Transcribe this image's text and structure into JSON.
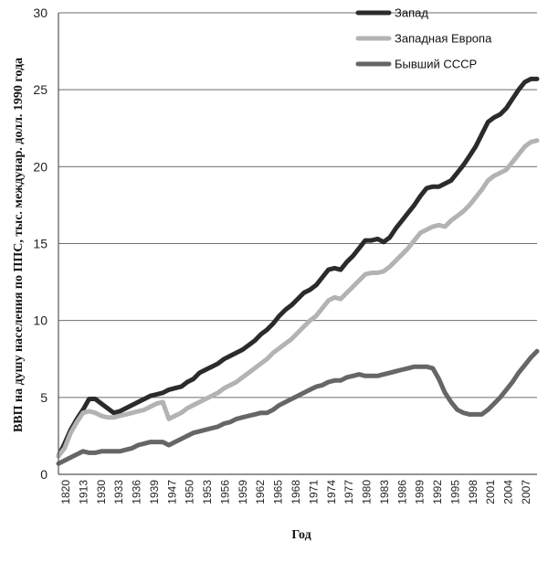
{
  "chart_data": {
    "type": "line",
    "title": "",
    "xlabel": "Год",
    "ylabel": "ВВП на душу населения по ППС, тыс. междунар. долл. 1990 года",
    "ylim": [
      0,
      30
    ],
    "yticks": [
      "0",
      "5",
      "10",
      "15",
      "20",
      "25",
      "30"
    ],
    "grid": "horizontal",
    "legend": "top-right",
    "x_tick_labels": [
      "1820",
      "1913",
      "1930",
      "1933",
      "1936",
      "1939",
      "1947",
      "1950",
      "1953",
      "1956",
      "1959",
      "1962",
      "1965",
      "1968",
      "1971",
      "1974",
      "1977",
      "1980",
      "1983",
      "1986",
      "1989",
      "1992",
      "1995",
      "1998",
      "2001",
      "2004",
      "2007"
    ],
    "series": [
      {
        "name": "Запад",
        "color": "#2b2b2b",
        "points": [
          [
            0,
            1.2
          ],
          [
            1,
            2.0
          ],
          [
            2,
            2.9
          ],
          [
            3,
            3.6
          ],
          [
            4,
            4.2
          ],
          [
            5,
            4.9
          ],
          [
            6,
            4.9
          ],
          [
            7,
            4.6
          ],
          [
            8,
            4.3
          ],
          [
            9,
            4.0
          ],
          [
            10,
            4.1
          ],
          [
            11,
            4.3
          ],
          [
            12,
            4.5
          ],
          [
            13,
            4.7
          ],
          [
            14,
            4.9
          ],
          [
            15,
            5.1
          ],
          [
            16,
            5.2
          ],
          [
            17,
            5.3
          ],
          [
            18,
            5.5
          ],
          [
            19,
            5.6
          ],
          [
            20,
            5.7
          ],
          [
            21,
            6.0
          ],
          [
            22,
            6.2
          ],
          [
            23,
            6.6
          ],
          [
            24,
            6.8
          ],
          [
            25,
            7.0
          ],
          [
            26,
            7.2
          ],
          [
            27,
            7.5
          ],
          [
            28,
            7.7
          ],
          [
            29,
            7.9
          ],
          [
            30,
            8.1
          ],
          [
            31,
            8.4
          ],
          [
            32,
            8.7
          ],
          [
            33,
            9.1
          ],
          [
            34,
            9.4
          ],
          [
            35,
            9.8
          ],
          [
            36,
            10.3
          ],
          [
            37,
            10.7
          ],
          [
            38,
            11.0
          ],
          [
            39,
            11.4
          ],
          [
            40,
            11.8
          ],
          [
            41,
            12.0
          ],
          [
            42,
            12.3
          ],
          [
            43,
            12.8
          ],
          [
            44,
            13.3
          ],
          [
            45,
            13.4
          ],
          [
            46,
            13.3
          ],
          [
            47,
            13.8
          ],
          [
            48,
            14.2
          ],
          [
            49,
            14.7
          ],
          [
            50,
            15.2
          ],
          [
            51,
            15.2
          ],
          [
            52,
            15.3
          ],
          [
            53,
            15.1
          ],
          [
            54,
            15.4
          ],
          [
            55,
            16.0
          ],
          [
            56,
            16.5
          ],
          [
            57,
            17.0
          ],
          [
            58,
            17.5
          ],
          [
            59,
            18.1
          ],
          [
            60,
            18.6
          ],
          [
            61,
            18.7
          ],
          [
            62,
            18.7
          ],
          [
            63,
            18.9
          ],
          [
            64,
            19.1
          ],
          [
            65,
            19.6
          ],
          [
            66,
            20.1
          ],
          [
            67,
            20.7
          ],
          [
            68,
            21.3
          ],
          [
            69,
            22.1
          ],
          [
            70,
            22.9
          ],
          [
            71,
            23.2
          ],
          [
            72,
            23.4
          ],
          [
            73,
            23.8
          ],
          [
            74,
            24.4
          ],
          [
            75,
            25.0
          ],
          [
            76,
            25.5
          ],
          [
            77,
            25.7
          ],
          [
            78,
            25.7
          ]
        ]
      },
      {
        "name": "Западная Европа",
        "color": "#b3b3b3",
        "points": [
          [
            0,
            1.2
          ],
          [
            1,
            1.7
          ],
          [
            2,
            2.7
          ],
          [
            3,
            3.4
          ],
          [
            4,
            4.0
          ],
          [
            5,
            4.1
          ],
          [
            6,
            4.0
          ],
          [
            7,
            3.8
          ],
          [
            8,
            3.7
          ],
          [
            9,
            3.7
          ],
          [
            10,
            3.8
          ],
          [
            11,
            3.9
          ],
          [
            12,
            4.0
          ],
          [
            13,
            4.1
          ],
          [
            14,
            4.2
          ],
          [
            15,
            4.4
          ],
          [
            16,
            4.6
          ],
          [
            17,
            4.7
          ],
          [
            18,
            3.6
          ],
          [
            19,
            3.8
          ],
          [
            20,
            4.0
          ],
          [
            21,
            4.3
          ],
          [
            22,
            4.5
          ],
          [
            23,
            4.7
          ],
          [
            24,
            4.9
          ],
          [
            25,
            5.1
          ],
          [
            26,
            5.3
          ],
          [
            27,
            5.6
          ],
          [
            28,
            5.8
          ],
          [
            29,
            6.0
          ],
          [
            30,
            6.3
          ],
          [
            31,
            6.6
          ],
          [
            32,
            6.9
          ],
          [
            33,
            7.2
          ],
          [
            34,
            7.5
          ],
          [
            35,
            7.9
          ],
          [
            36,
            8.2
          ],
          [
            37,
            8.5
          ],
          [
            38,
            8.8
          ],
          [
            39,
            9.2
          ],
          [
            40,
            9.6
          ],
          [
            41,
            10.0
          ],
          [
            42,
            10.3
          ],
          [
            43,
            10.8
          ],
          [
            44,
            11.3
          ],
          [
            45,
            11.5
          ],
          [
            46,
            11.4
          ],
          [
            47,
            11.8
          ],
          [
            48,
            12.2
          ],
          [
            49,
            12.6
          ],
          [
            50,
            13.0
          ],
          [
            51,
            13.1
          ],
          [
            52,
            13.1
          ],
          [
            53,
            13.2
          ],
          [
            54,
            13.5
          ],
          [
            55,
            13.9
          ],
          [
            56,
            14.3
          ],
          [
            57,
            14.7
          ],
          [
            58,
            15.2
          ],
          [
            59,
            15.7
          ],
          [
            60,
            15.9
          ],
          [
            61,
            16.1
          ],
          [
            62,
            16.2
          ],
          [
            63,
            16.1
          ],
          [
            64,
            16.5
          ],
          [
            65,
            16.8
          ],
          [
            66,
            17.1
          ],
          [
            67,
            17.5
          ],
          [
            68,
            18.0
          ],
          [
            69,
            18.5
          ],
          [
            70,
            19.1
          ],
          [
            71,
            19.4
          ],
          [
            72,
            19.6
          ],
          [
            73,
            19.8
          ],
          [
            74,
            20.3
          ],
          [
            75,
            20.8
          ],
          [
            76,
            21.3
          ],
          [
            77,
            21.6
          ],
          [
            78,
            21.7
          ]
        ]
      },
      {
        "name": "Бывший СССР",
        "color": "#666666",
        "points": [
          [
            0,
            0.7
          ],
          [
            1,
            0.9
          ],
          [
            2,
            1.1
          ],
          [
            3,
            1.3
          ],
          [
            4,
            1.5
          ],
          [
            5,
            1.4
          ],
          [
            6,
            1.4
          ],
          [
            7,
            1.5
          ],
          [
            8,
            1.5
          ],
          [
            9,
            1.5
          ],
          [
            10,
            1.5
          ],
          [
            11,
            1.6
          ],
          [
            12,
            1.7
          ],
          [
            13,
            1.9
          ],
          [
            14,
            2.0
          ],
          [
            15,
            2.1
          ],
          [
            16,
            2.1
          ],
          [
            17,
            2.1
          ],
          [
            18,
            1.9
          ],
          [
            19,
            2.1
          ],
          [
            20,
            2.3
          ],
          [
            21,
            2.5
          ],
          [
            22,
            2.7
          ],
          [
            23,
            2.8
          ],
          [
            24,
            2.9
          ],
          [
            25,
            3.0
          ],
          [
            26,
            3.1
          ],
          [
            27,
            3.3
          ],
          [
            28,
            3.4
          ],
          [
            29,
            3.6
          ],
          [
            30,
            3.7
          ],
          [
            31,
            3.8
          ],
          [
            32,
            3.9
          ],
          [
            33,
            4.0
          ],
          [
            34,
            4.0
          ],
          [
            35,
            4.2
          ],
          [
            36,
            4.5
          ],
          [
            37,
            4.7
          ],
          [
            38,
            4.9
          ],
          [
            39,
            5.1
          ],
          [
            40,
            5.3
          ],
          [
            41,
            5.5
          ],
          [
            42,
            5.7
          ],
          [
            43,
            5.8
          ],
          [
            44,
            6.0
          ],
          [
            45,
            6.1
          ],
          [
            46,
            6.1
          ],
          [
            47,
            6.3
          ],
          [
            48,
            6.4
          ],
          [
            49,
            6.5
          ],
          [
            50,
            6.4
          ],
          [
            51,
            6.4
          ],
          [
            52,
            6.4
          ],
          [
            53,
            6.5
          ],
          [
            54,
            6.6
          ],
          [
            55,
            6.7
          ],
          [
            56,
            6.8
          ],
          [
            57,
            6.9
          ],
          [
            58,
            7.0
          ],
          [
            59,
            7.0
          ],
          [
            60,
            7.0
          ],
          [
            61,
            6.9
          ],
          [
            62,
            6.2
          ],
          [
            63,
            5.3
          ],
          [
            64,
            4.7
          ],
          [
            65,
            4.2
          ],
          [
            66,
            4.0
          ],
          [
            67,
            3.9
          ],
          [
            68,
            3.9
          ],
          [
            69,
            3.9
          ],
          [
            70,
            4.2
          ],
          [
            71,
            4.6
          ],
          [
            72,
            5.0
          ],
          [
            73,
            5.5
          ],
          [
            74,
            6.0
          ],
          [
            75,
            6.6
          ],
          [
            76,
            7.1
          ],
          [
            77,
            7.6
          ],
          [
            78,
            8.0
          ]
        ]
      }
    ]
  }
}
